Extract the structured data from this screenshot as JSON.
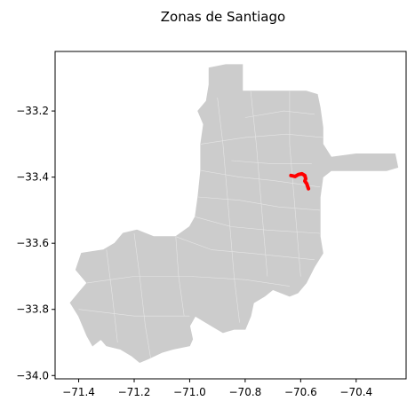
{
  "title": "Zonas de Santiago",
  "colors": {
    "region_fill": "#cccccc",
    "zone_lines": "#e6e6e6",
    "highlight": "#ff0000",
    "axes": "#000000"
  },
  "chart_data": {
    "type": "map",
    "title": "Zonas de Santiago",
    "xlim": [
      -71.485,
      -70.22
    ],
    "ylim": [
      -34.01,
      -33.02
    ],
    "x_ticks": [
      {
        "value": -71.4,
        "label": "−71.4"
      },
      {
        "value": -71.2,
        "label": "−71.2"
      },
      {
        "value": -71.0,
        "label": "−71.0"
      },
      {
        "value": -70.8,
        "label": "−70.8"
      },
      {
        "value": -70.6,
        "label": "−70.6"
      },
      {
        "value": -70.4,
        "label": "−70.4"
      }
    ],
    "y_ticks": [
      {
        "value": -33.2,
        "label": "−33.2"
      },
      {
        "value": -33.4,
        "label": "−33.4"
      },
      {
        "value": -33.6,
        "label": "−33.6"
      },
      {
        "value": -33.8,
        "label": "−33.8"
      },
      {
        "value": -34.0,
        "label": "−34.0"
      }
    ],
    "grid": false,
    "region_outline": [
      [
        -70.93,
        -33.07
      ],
      [
        -70.87,
        -33.06
      ],
      [
        -70.81,
        -33.06
      ],
      [
        -70.81,
        -33.14
      ],
      [
        -70.75,
        -33.14
      ],
      [
        -70.67,
        -33.14
      ],
      [
        -70.58,
        -33.14
      ],
      [
        -70.54,
        -33.15
      ],
      [
        -70.53,
        -33.19
      ],
      [
        -70.52,
        -33.25
      ],
      [
        -70.52,
        -33.3
      ],
      [
        -70.49,
        -33.34
      ],
      [
        -70.4,
        -33.33
      ],
      [
        -70.31,
        -33.33
      ],
      [
        -70.26,
        -33.33
      ],
      [
        -70.25,
        -33.37
      ],
      [
        -70.29,
        -33.38
      ],
      [
        -70.4,
        -33.38
      ],
      [
        -70.49,
        -33.38
      ],
      [
        -70.52,
        -33.4
      ],
      [
        -70.53,
        -33.46
      ],
      [
        -70.53,
        -33.52
      ],
      [
        -70.53,
        -33.58
      ],
      [
        -70.52,
        -33.63
      ],
      [
        -70.55,
        -33.67
      ],
      [
        -70.58,
        -33.72
      ],
      [
        -70.61,
        -33.75
      ],
      [
        -70.64,
        -33.76
      ],
      [
        -70.7,
        -33.74
      ],
      [
        -70.73,
        -33.76
      ],
      [
        -70.77,
        -33.78
      ],
      [
        -70.78,
        -33.82
      ],
      [
        -70.8,
        -33.86
      ],
      [
        -70.84,
        -33.86
      ],
      [
        -70.88,
        -33.87
      ],
      [
        -70.92,
        -33.85
      ],
      [
        -70.98,
        -33.82
      ],
      [
        -71.0,
        -33.85
      ],
      [
        -70.99,
        -33.89
      ],
      [
        -71.0,
        -33.91
      ],
      [
        -71.06,
        -33.92
      ],
      [
        -71.1,
        -33.93
      ],
      [
        -71.15,
        -33.95
      ],
      [
        -71.18,
        -33.96
      ],
      [
        -71.21,
        -33.94
      ],
      [
        -71.25,
        -33.92
      ],
      [
        -71.3,
        -33.91
      ],
      [
        -71.32,
        -33.89
      ],
      [
        -71.35,
        -33.91
      ],
      [
        -71.37,
        -33.88
      ],
      [
        -71.4,
        -33.82
      ],
      [
        -71.43,
        -33.78
      ],
      [
        -71.4,
        -33.75
      ],
      [
        -71.37,
        -33.72
      ],
      [
        -71.41,
        -33.68
      ],
      [
        -71.39,
        -33.63
      ],
      [
        -71.31,
        -33.62
      ],
      [
        -71.27,
        -33.6
      ],
      [
        -71.24,
        -33.57
      ],
      [
        -71.19,
        -33.56
      ],
      [
        -71.13,
        -33.58
      ],
      [
        -71.05,
        -33.58
      ],
      [
        -71.0,
        -33.55
      ],
      [
        -70.98,
        -33.52
      ],
      [
        -70.97,
        -33.46
      ],
      [
        -70.96,
        -33.38
      ],
      [
        -70.96,
        -33.3
      ],
      [
        -70.95,
        -33.24
      ],
      [
        -70.97,
        -33.2
      ],
      [
        -70.94,
        -33.17
      ],
      [
        -70.93,
        -33.12
      ]
    ],
    "zone_lines": [
      [
        [
          -70.96,
          -33.3
        ],
        [
          -70.8,
          -33.28
        ],
        [
          -70.65,
          -33.27
        ],
        [
          -70.52,
          -33.28
        ]
      ],
      [
        [
          -70.96,
          -33.38
        ],
        [
          -70.82,
          -33.4
        ],
        [
          -70.7,
          -33.41
        ],
        [
          -70.53,
          -33.43
        ]
      ],
      [
        [
          -70.97,
          -33.46
        ],
        [
          -70.82,
          -33.47
        ],
        [
          -70.68,
          -33.49
        ],
        [
          -70.53,
          -33.5
        ]
      ],
      [
        [
          -70.98,
          -33.52
        ],
        [
          -70.85,
          -33.55
        ],
        [
          -70.72,
          -33.56
        ],
        [
          -70.53,
          -33.57
        ]
      ],
      [
        [
          -71.05,
          -33.58
        ],
        [
          -70.92,
          -33.62
        ],
        [
          -70.78,
          -33.63
        ],
        [
          -70.55,
          -33.65
        ]
      ],
      [
        [
          -71.37,
          -33.72
        ],
        [
          -71.2,
          -33.7
        ],
        [
          -71.0,
          -33.7
        ],
        [
          -70.8,
          -33.71
        ],
        [
          -70.64,
          -33.73
        ]
      ],
      [
        [
          -71.4,
          -33.8
        ],
        [
          -71.2,
          -33.82
        ],
        [
          -71.0,
          -33.82
        ]
      ],
      [
        [
          -70.9,
          -33.16
        ],
        [
          -70.88,
          -33.3
        ],
        [
          -70.86,
          -33.5
        ],
        [
          -70.84,
          -33.7
        ],
        [
          -70.82,
          -33.84
        ]
      ],
      [
        [
          -70.78,
          -33.14
        ],
        [
          -70.76,
          -33.3
        ],
        [
          -70.74,
          -33.5
        ],
        [
          -70.72,
          -33.7
        ]
      ],
      [
        [
          -70.64,
          -33.14
        ],
        [
          -70.64,
          -33.3
        ],
        [
          -70.62,
          -33.5
        ],
        [
          -70.6,
          -33.7
        ]
      ],
      [
        [
          -71.2,
          -33.57
        ],
        [
          -71.18,
          -33.7
        ],
        [
          -71.16,
          -33.85
        ],
        [
          -71.14,
          -33.95
        ]
      ],
      [
        [
          -71.3,
          -33.62
        ],
        [
          -71.28,
          -33.75
        ],
        [
          -71.26,
          -33.9
        ]
      ],
      [
        [
          -71.05,
          -33.58
        ],
        [
          -71.04,
          -33.7
        ],
        [
          -71.02,
          -33.82
        ]
      ],
      [
        [
          -70.85,
          -33.35
        ],
        [
          -70.7,
          -33.36
        ],
        [
          -70.56,
          -33.36
        ]
      ],
      [
        [
          -70.8,
          -33.22
        ],
        [
          -70.66,
          -33.2
        ],
        [
          -70.55,
          -33.21
        ]
      ]
    ],
    "highlight_path": [
      [
        -70.635,
        -33.395
      ],
      [
        -70.62,
        -33.398
      ],
      [
        -70.608,
        -33.392
      ],
      [
        -70.595,
        -33.39
      ],
      [
        -70.585,
        -33.395
      ],
      [
        -70.582,
        -33.405
      ],
      [
        -70.585,
        -33.412
      ],
      [
        -70.578,
        -33.42
      ],
      [
        -70.572,
        -33.435
      ]
    ]
  }
}
